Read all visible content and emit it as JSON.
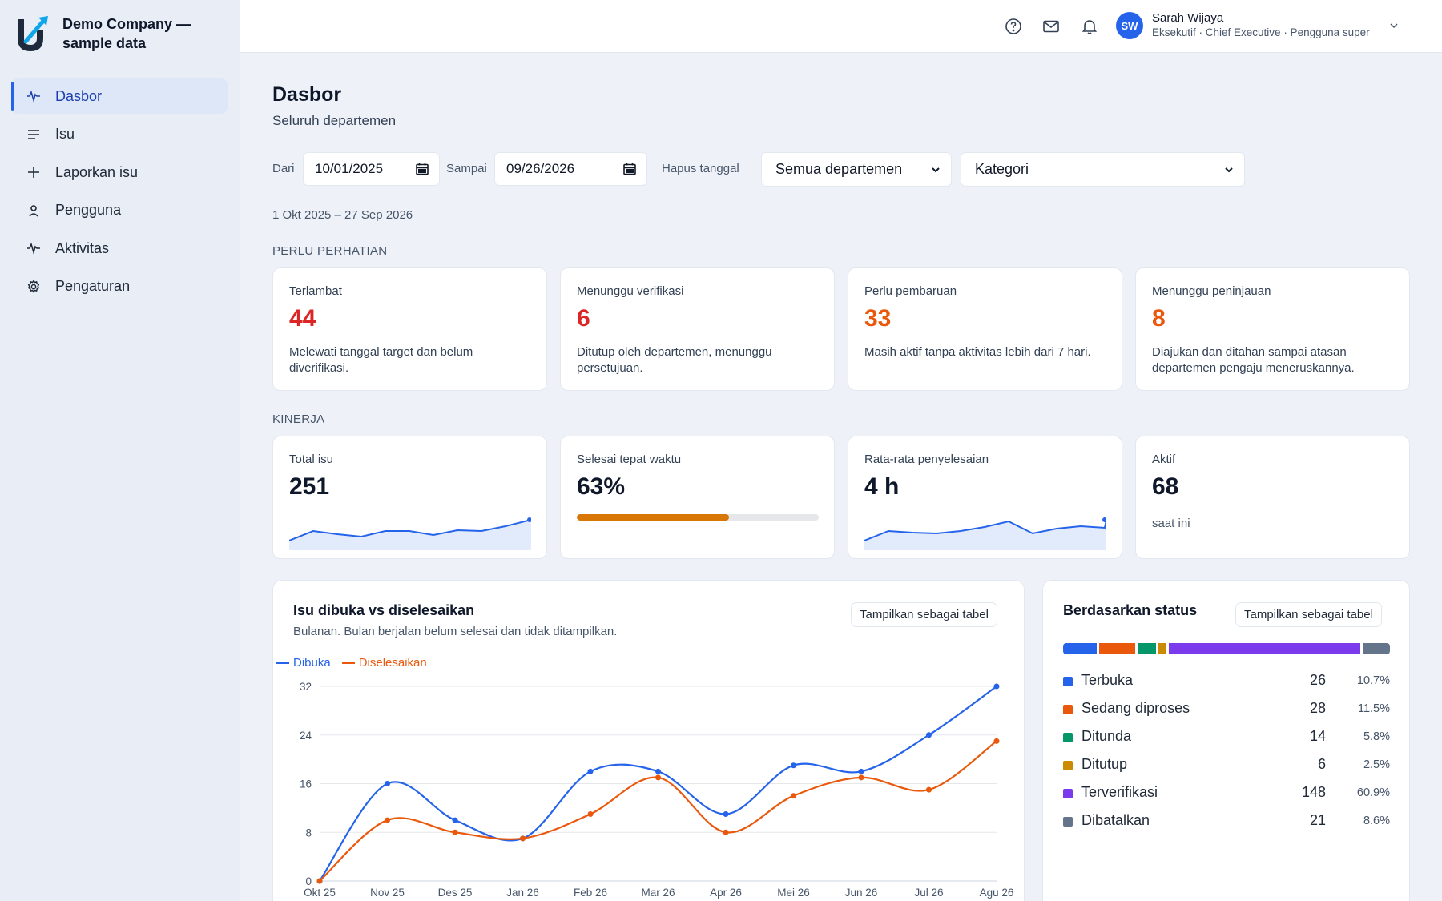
{
  "brand": {
    "name": "Demo Company — sample data"
  },
  "sidebar": {
    "items": [
      {
        "label": "Dasbor",
        "icon": "activity-icon",
        "active": true
      },
      {
        "label": "Isu",
        "icon": "list-icon"
      },
      {
        "label": "Laporkan isu",
        "icon": "plus-icon"
      },
      {
        "label": "Pengguna",
        "icon": "user-icon"
      },
      {
        "label": "Aktivitas",
        "icon": "activity-icon"
      },
      {
        "label": "Pengaturan",
        "icon": "gear-icon"
      }
    ]
  },
  "topbar": {
    "icons": [
      "help-icon",
      "mail-icon",
      "bell-icon"
    ],
    "user": {
      "initials": "SW",
      "name": "Sarah Wijaya",
      "role": "Eksekutif · Chief Executive · Pengguna super"
    }
  },
  "page": {
    "title": "Dasbor",
    "subtitle": "Seluruh departemen"
  },
  "filters": {
    "from_label": "Dari",
    "from_value": "10/01/2025",
    "to_label": "Sampai",
    "to_value": "09/26/2026",
    "clear_label": "Hapus tanggal",
    "department": "Semua departemen",
    "category": "Kategori",
    "range_text": "1 Okt 2025 – 27 Sep 2026"
  },
  "attention": {
    "section": "PERLU PERHATIAN",
    "cards": [
      {
        "label": "Terlambat",
        "value": "44",
        "desc": "Melewati tanggal target dan belum diverifikasi.",
        "color": "#dc2626"
      },
      {
        "label": "Menunggu verifikasi",
        "value": "6",
        "desc": "Ditutup oleh departemen, menunggu persetujuan.",
        "color": "#dc2626"
      },
      {
        "label": "Perlu pembaruan",
        "value": "33",
        "desc": "Masih aktif tanpa aktivitas lebih dari 7 hari.",
        "color": "#ea580c"
      },
      {
        "label": "Menunggu peninjauan",
        "value": "8",
        "desc": "Diajukan dan ditahan sampai atasan departemen pengaju meneruskannya.",
        "color": "#ea580c"
      }
    ]
  },
  "performance": {
    "section": "KINERJA",
    "total": {
      "label": "Total isu",
      "value": "251"
    },
    "ontime": {
      "label": "Selesai tepat waktu",
      "value": "63%",
      "progress": 0.63
    },
    "avg": {
      "label": "Rata-rata penyelesaian",
      "value": "4 h"
    },
    "active": {
      "label": "Aktif",
      "value": "68",
      "note": "saat ini"
    }
  },
  "trend_panel": {
    "title": "Isu dibuka vs diselesaikan",
    "subtitle": "Bulanan. Bulan berjalan belum selesai dan tidak ditampilkan.",
    "button": "Tampilkan sebagai tabel"
  },
  "chart_data": {
    "type": "line",
    "x": [
      "Okt 25",
      "Nov 25",
      "Des 25",
      "Jan 26",
      "Feb 26",
      "Mar 26",
      "Apr 26",
      "Mei 26",
      "Jun 26",
      "Jul 26",
      "Agu 26"
    ],
    "series": [
      {
        "name": "Dibuka",
        "color": "#2563eb",
        "values": [
          0,
          16,
          10,
          7,
          18,
          18,
          11,
          19,
          18,
          24,
          32
        ]
      },
      {
        "name": "Diselesaikan",
        "color": "#ea580c",
        "values": [
          0,
          10,
          8,
          7,
          11,
          17,
          8,
          14,
          17,
          15,
          23
        ]
      }
    ],
    "yticks": [
      0,
      8,
      16,
      24,
      32
    ],
    "ylim": [
      0,
      32
    ],
    "grid": true,
    "legend": "top-left"
  },
  "status_panel": {
    "title": "Berdasarkan status",
    "button": "Tampilkan sebagai tabel",
    "items": [
      {
        "name": "Terbuka",
        "count": "26",
        "pct": "10.7%",
        "color": "#2563eb",
        "share": 0.107
      },
      {
        "name": "Sedang diproses",
        "count": "28",
        "pct": "11.5%",
        "color": "#ea580c",
        "share": 0.115
      },
      {
        "name": "Ditunda",
        "count": "14",
        "pct": "5.8%",
        "color": "#059669",
        "share": 0.058
      },
      {
        "name": "Ditutup",
        "count": "6",
        "pct": "2.5%",
        "color": "#ca8a04",
        "share": 0.025
      },
      {
        "name": "Terverifikasi",
        "count": "148",
        "pct": "60.9%",
        "color": "#7c3aed",
        "share": 0.609
      },
      {
        "name": "Dibatalkan",
        "count": "21",
        "pct": "8.6%",
        "color": "#64748b",
        "share": 0.086
      }
    ]
  },
  "colors": {
    "accent": "#2563eb",
    "danger": "#dc2626",
    "warning": "#ea580c",
    "progress": "#d97706"
  }
}
